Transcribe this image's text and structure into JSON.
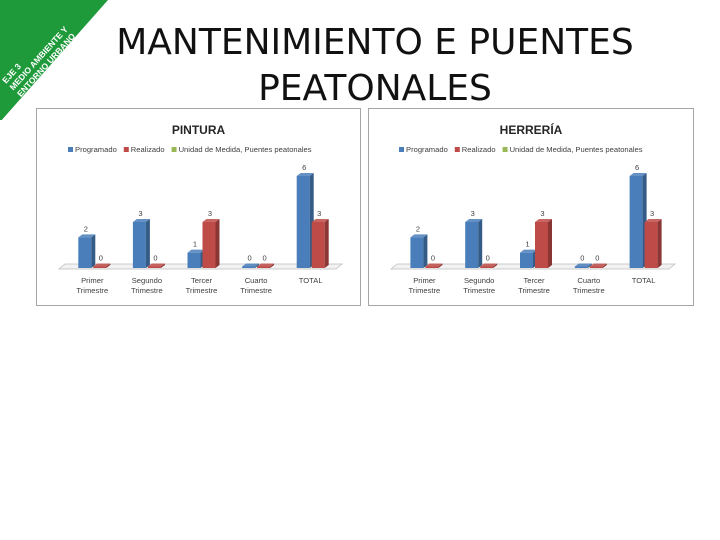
{
  "slide": {
    "title_line1": "MANTENIMIENTO E PUENTES",
    "title_line2": "PEATONALES",
    "corner_badge": {
      "lines": [
        "EJE 3",
        "MEDIO AMBIENTE Y",
        "ENTORNO URBANO"
      ],
      "color": "#1f9a3a"
    }
  },
  "chart_data": [
    {
      "type": "bar",
      "title": "PINTURA",
      "categories": [
        [
          "Primer",
          "Trimestre"
        ],
        [
          "Segundo",
          "Trimestre"
        ],
        [
          "Tercer",
          "Trimestre"
        ],
        [
          "Cuarto",
          "Trimestre"
        ],
        [
          "TOTAL"
        ]
      ],
      "series": [
        {
          "name": "Programado",
          "color": "#4a7ebb",
          "values": [
            2,
            3,
            1,
            0,
            6
          ]
        },
        {
          "name": "Realizado",
          "color": "#be4b48",
          "values": [
            0,
            0,
            3,
            0,
            3
          ]
        },
        {
          "name": "Unidad de Medida, Puentes peatonales",
          "color": "#98b954",
          "values": [
            null,
            null,
            null,
            null,
            null
          ]
        }
      ],
      "ylim": [
        0,
        6
      ],
      "legend": "top",
      "grid": false
    },
    {
      "type": "bar",
      "title": "HERRERÍA",
      "categories": [
        [
          "Primer",
          "Trimestre"
        ],
        [
          "Segundo",
          "Trimestre"
        ],
        [
          "Tercer",
          "Trimestre"
        ],
        [
          "Cuarto",
          "Trimestre"
        ],
        [
          "TOTAL"
        ]
      ],
      "series": [
        {
          "name": "Programado",
          "color": "#4a7ebb",
          "values": [
            2,
            3,
            1,
            0,
            6
          ]
        },
        {
          "name": "Realizado",
          "color": "#be4b48",
          "values": [
            0,
            0,
            3,
            0,
            3
          ]
        },
        {
          "name": "Unidad de Medida, Puentes peatonales",
          "color": "#98b954",
          "values": [
            null,
            null,
            null,
            null,
            null
          ]
        }
      ],
      "ylim": [
        0,
        6
      ],
      "legend": "top",
      "grid": false
    }
  ]
}
